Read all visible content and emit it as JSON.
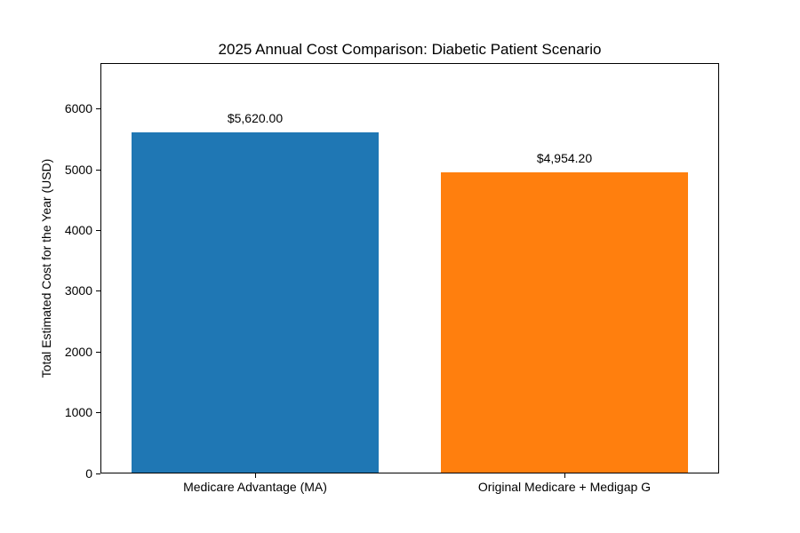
{
  "chart_data": {
    "type": "bar",
    "title": "2025 Annual Cost Comparison: Diabetic Patient Scenario",
    "xlabel": "",
    "ylabel": "Total Estimated Cost for the Year (USD)",
    "categories": [
      "Medicare Advantage (MA)",
      "Original Medicare + Medigap G"
    ],
    "values": [
      5620.0,
      4954.2
    ],
    "value_labels": [
      "$5,620.00",
      "$4,954.20"
    ],
    "bar_colors": [
      "#1f77b4",
      "#ff7f0e"
    ],
    "yticks": [
      0,
      1000,
      2000,
      3000,
      4000,
      5000,
      6000
    ],
    "ylim": [
      0,
      6760
    ],
    "xlim": [
      -0.5,
      1.5
    ],
    "bar_width": 0.8,
    "grid": false,
    "legend": "none",
    "background_color": "#ffffff",
    "axis_color": "#000000"
  }
}
